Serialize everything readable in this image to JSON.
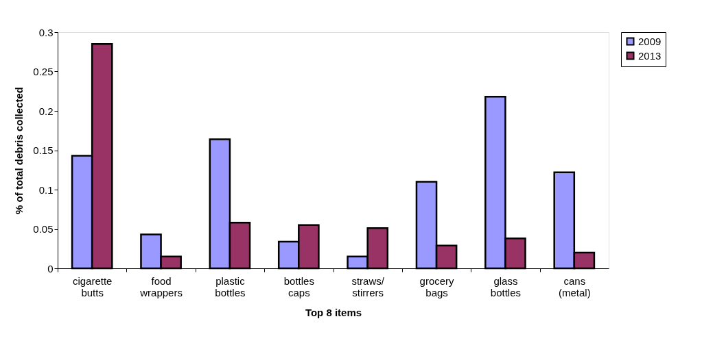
{
  "chart_data": {
    "type": "bar",
    "xlabel": "Top 8 items",
    "ylabel": "% of total debris collected",
    "categories": [
      "cigarette butts",
      "food wrappers",
      "plastic bottles",
      "bottles caps",
      "straws/ stirrers",
      "grocery bags",
      "glass bottles",
      "cans (metal)"
    ],
    "series": [
      {
        "name": "2009",
        "color": "#9999ff",
        "values": [
          0.143,
          0.043,
          0.164,
          0.034,
          0.015,
          0.11,
          0.218,
          0.122
        ]
      },
      {
        "name": "2013",
        "color": "#993366",
        "values": [
          0.285,
          0.015,
          0.058,
          0.055,
          0.051,
          0.029,
          0.038,
          0.02
        ]
      }
    ],
    "ylim": [
      0,
      0.3
    ],
    "yticks": [
      0,
      0.05,
      0.1,
      0.15,
      0.2,
      0.25,
      0.3
    ],
    "grid": false,
    "legend": "right"
  }
}
